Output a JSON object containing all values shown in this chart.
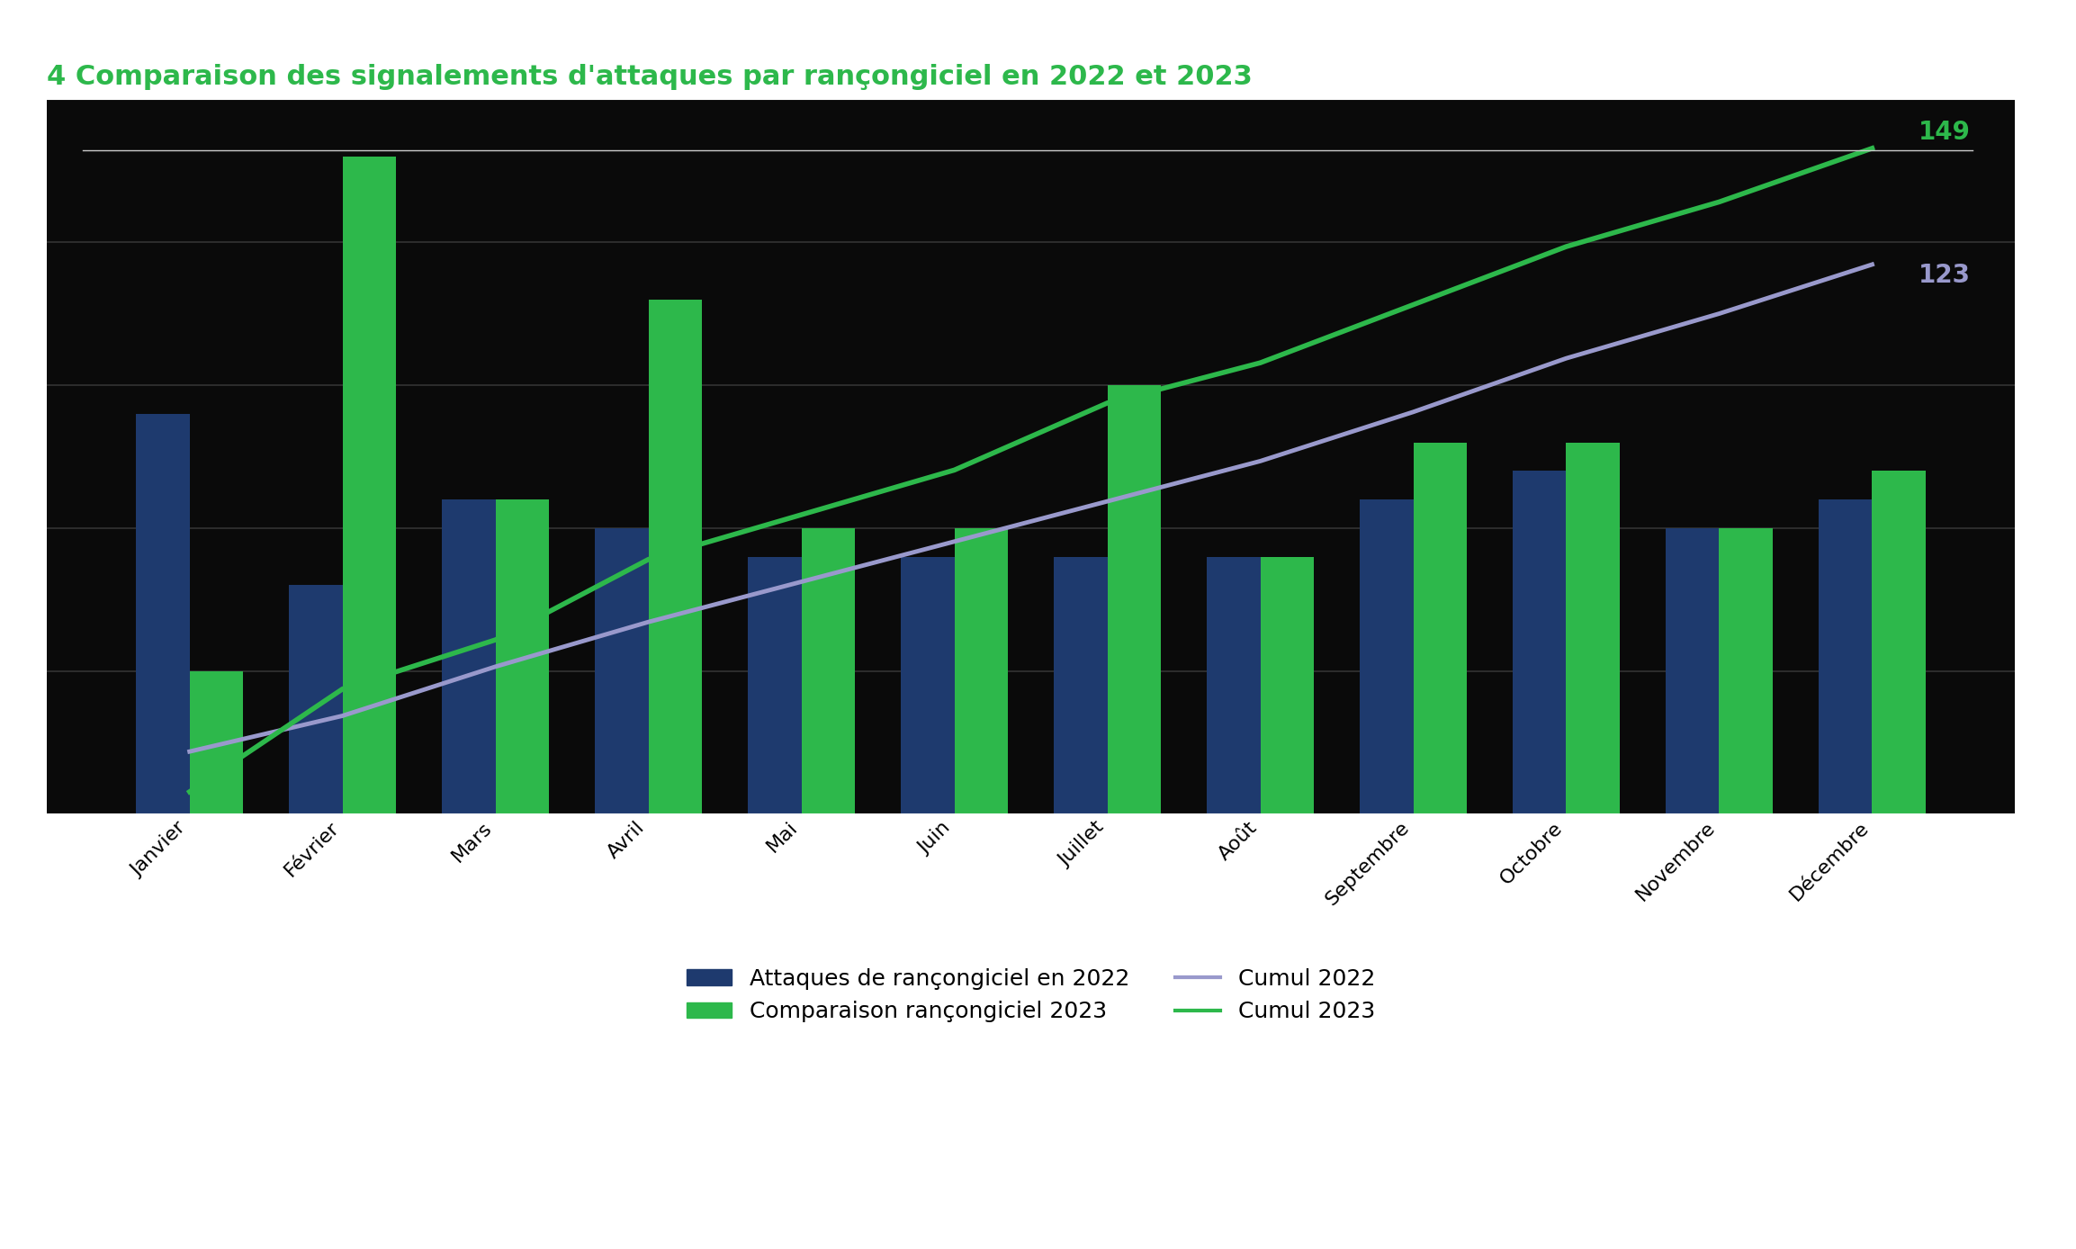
{
  "title": "4 Comparaison des signalements d'attaques par rançongiciel en 2022 et 2023",
  "categories": [
    "Janvier",
    "Février",
    "Mars",
    "Avril",
    "Mai",
    "Juin",
    "Juillet",
    "Août",
    "Septembre",
    "Octobre",
    "Novembre",
    "Décembre"
  ],
  "values_2022": [
    14,
    8,
    11,
    10,
    9,
    9,
    9,
    9,
    11,
    12,
    10,
    11
  ],
  "values_2023": [
    5,
    23,
    11,
    18,
    10,
    10,
    15,
    9,
    13,
    13,
    10,
    12
  ],
  "cumul_2022": [
    14,
    22,
    33,
    43,
    52,
    61,
    70,
    79,
    90,
    102,
    112,
    123
  ],
  "cumul_2023": [
    5,
    28,
    39,
    57,
    67,
    77,
    92,
    101,
    114,
    127,
    137,
    149
  ],
  "color_2022": "#1e3a6e",
  "color_2023": "#2db84b",
  "color_cumul_2022": "#9999cc",
  "color_cumul_2023": "#2db84b",
  "fig_bg_color": "#ffffff",
  "plot_bg_color": "#0a0a0a",
  "text_color": "#ffffff",
  "outer_text_color": "#000000",
  "title_color": "#2db84b",
  "grid_color": "#333333",
  "legend_labels": [
    "Attaques de rançongiciel en 2022",
    "Comparaison rançongiciel 2023",
    "Cumul 2022",
    "Cumul 2023"
  ],
  "ylim_bars": [
    0,
    25
  ],
  "ylim_lines": [
    0,
    160
  ],
  "yticks_bars": [
    0,
    5,
    10,
    15,
    20,
    25
  ],
  "yticks_lines": [
    0,
    20,
    40,
    60,
    80,
    100,
    120,
    140,
    160
  ],
  "annotation_cumul2022": "123",
  "annotation_cumul2023": "149",
  "bar_width": 0.35
}
